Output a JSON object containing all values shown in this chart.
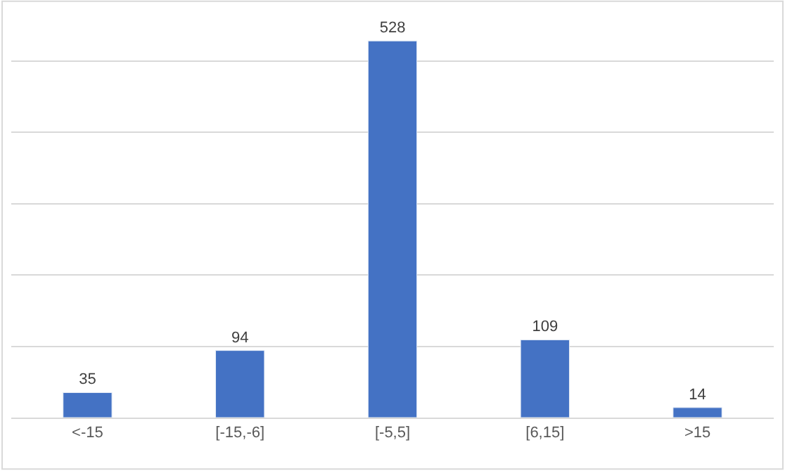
{
  "chart_data": {
    "type": "bar",
    "categories": [
      "<-15",
      "[-15,-6]",
      "[-5,5]",
      "[6,15]",
      ">15"
    ],
    "values": [
      35,
      94,
      528,
      109,
      14
    ],
    "color": "#4472c4",
    "grid": "y",
    "tick_labels": "x",
    "data_labels": true
  }
}
